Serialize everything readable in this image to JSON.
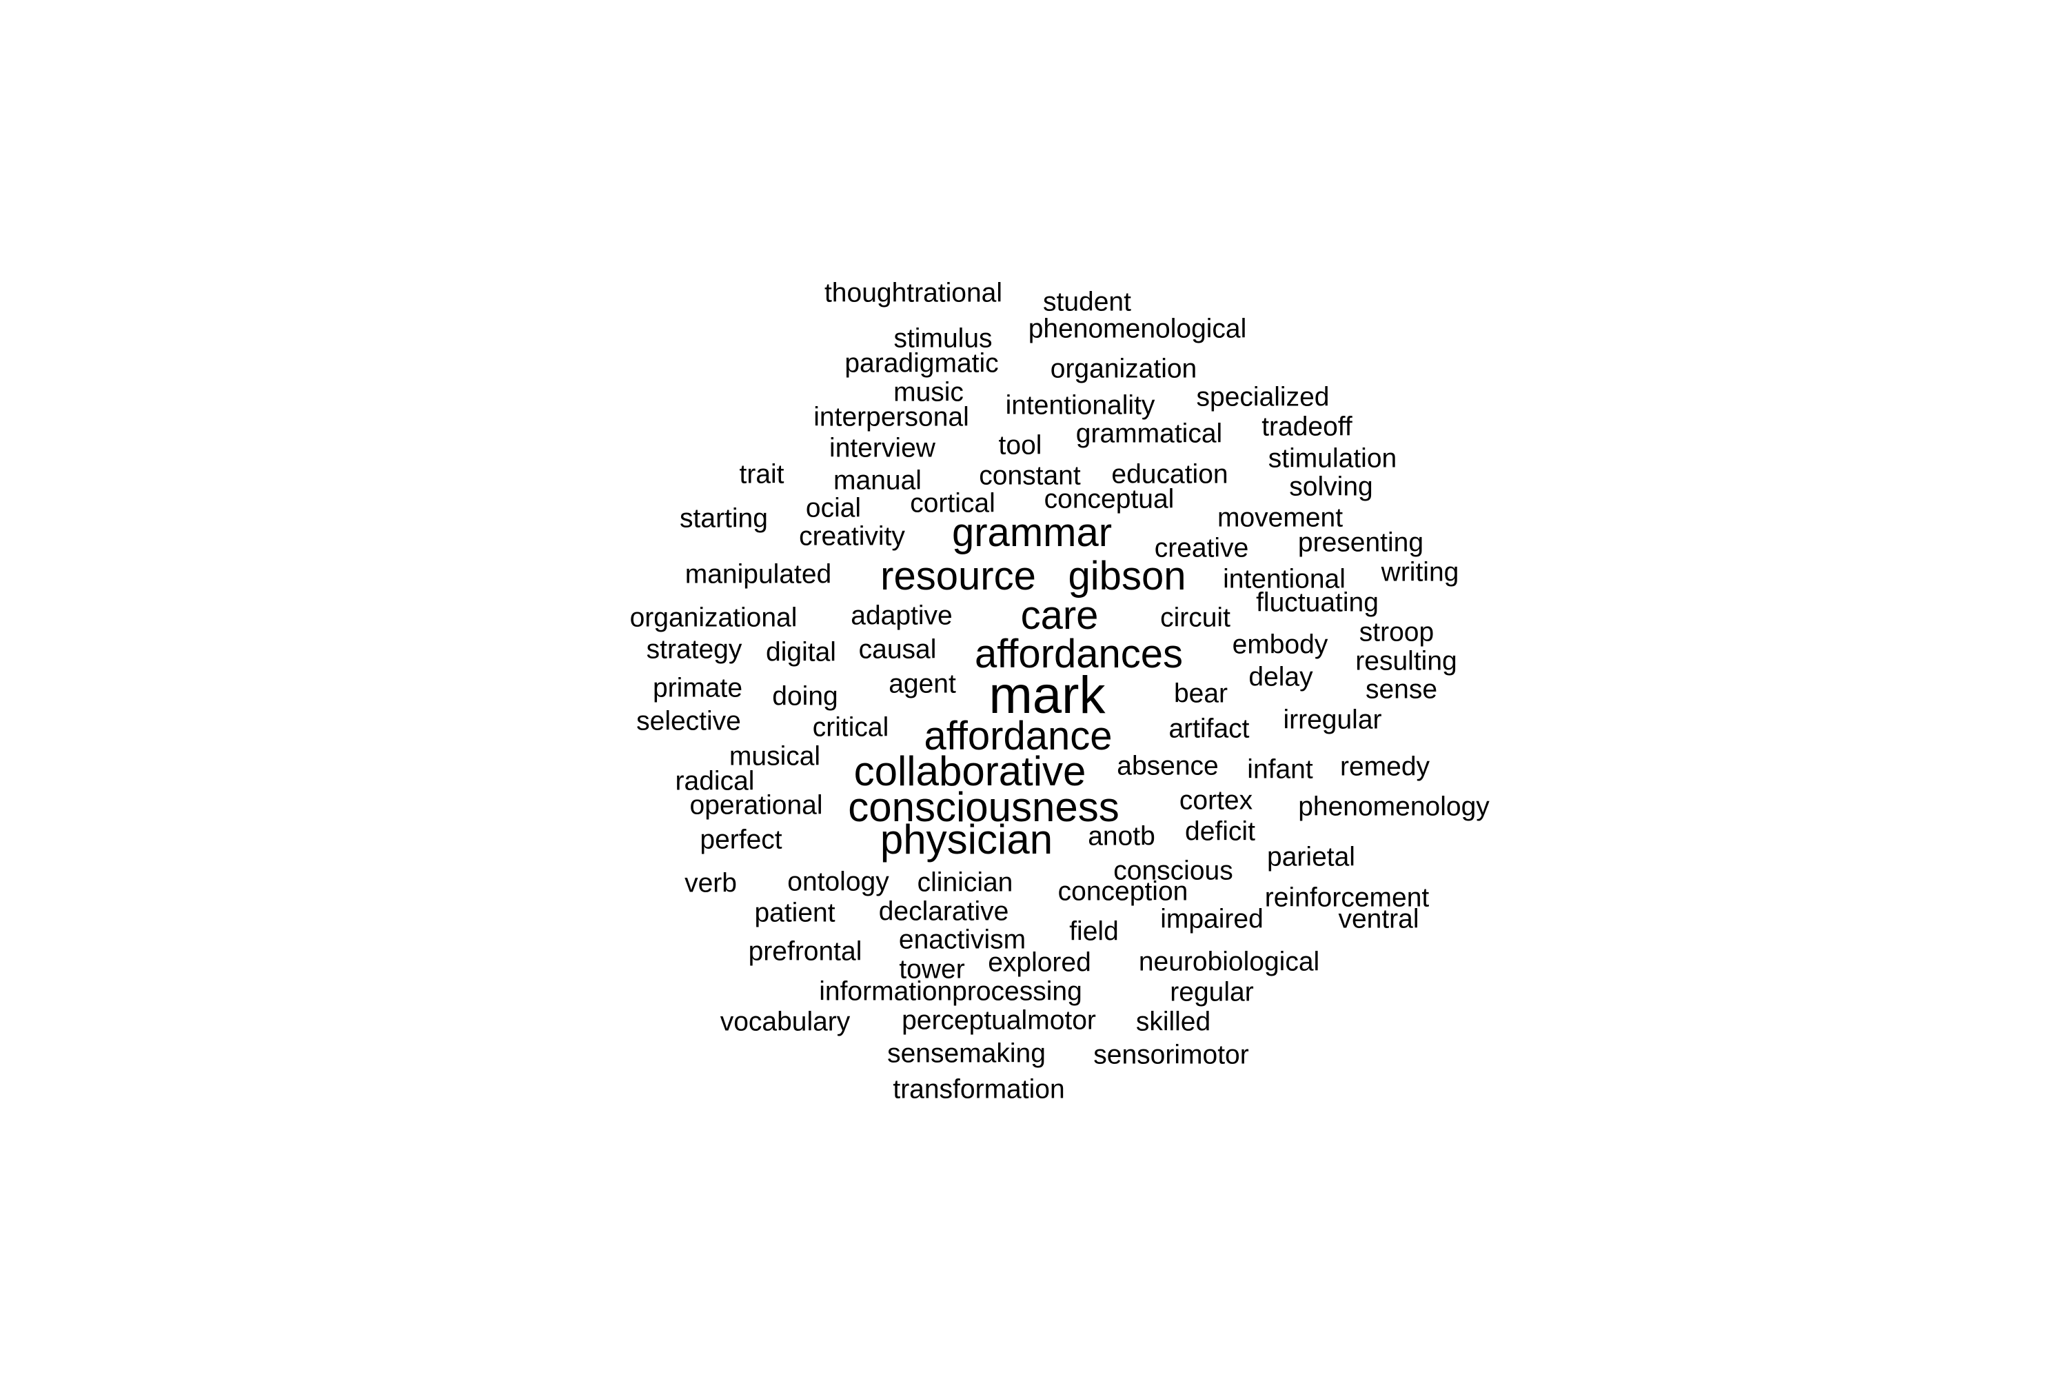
{
  "word_cloud": {
    "text_color": "#000000",
    "background": "#ffffff",
    "words": [
      {
        "text": "thoughtrational",
        "weight": 1
      },
      {
        "text": "student",
        "weight": 1
      },
      {
        "text": "stimulus",
        "weight": 1
      },
      {
        "text": "phenomenological",
        "weight": 1
      },
      {
        "text": "paradigmatic",
        "weight": 1
      },
      {
        "text": "organization",
        "weight": 1
      },
      {
        "text": "music",
        "weight": 1
      },
      {
        "text": "intentionality",
        "weight": 1
      },
      {
        "text": "specialized",
        "weight": 1
      },
      {
        "text": "interpersonal",
        "weight": 1
      },
      {
        "text": "tradeoff",
        "weight": 1
      },
      {
        "text": "grammatical",
        "weight": 1
      },
      {
        "text": "interview",
        "weight": 1
      },
      {
        "text": "tool",
        "weight": 1
      },
      {
        "text": "stimulation",
        "weight": 1
      },
      {
        "text": "trait",
        "weight": 1
      },
      {
        "text": "manual",
        "weight": 1
      },
      {
        "text": "constant",
        "weight": 1
      },
      {
        "text": "education",
        "weight": 1
      },
      {
        "text": "solving",
        "weight": 1
      },
      {
        "text": "ocial",
        "weight": 1
      },
      {
        "text": "cortical",
        "weight": 1
      },
      {
        "text": "conceptual",
        "weight": 1
      },
      {
        "text": "starting",
        "weight": 1
      },
      {
        "text": "movement",
        "weight": 1
      },
      {
        "text": "creativity",
        "weight": 1
      },
      {
        "text": "grammar",
        "weight": 3
      },
      {
        "text": "presenting",
        "weight": 1
      },
      {
        "text": "creative",
        "weight": 1
      },
      {
        "text": "manipulated",
        "weight": 1
      },
      {
        "text": "resource",
        "weight": 3
      },
      {
        "text": "gibson",
        "weight": 3
      },
      {
        "text": "intentional",
        "weight": 1
      },
      {
        "text": "writing",
        "weight": 1
      },
      {
        "text": "fluctuating",
        "weight": 1
      },
      {
        "text": "organizational",
        "weight": 1
      },
      {
        "text": "adaptive",
        "weight": 1
      },
      {
        "text": "care",
        "weight": 3
      },
      {
        "text": "circuit",
        "weight": 1
      },
      {
        "text": "stroop",
        "weight": 1
      },
      {
        "text": "strategy",
        "weight": 1
      },
      {
        "text": "digital",
        "weight": 1
      },
      {
        "text": "causal",
        "weight": 1
      },
      {
        "text": "affordances",
        "weight": 3
      },
      {
        "text": "embody",
        "weight": 1
      },
      {
        "text": "resulting",
        "weight": 1
      },
      {
        "text": "delay",
        "weight": 1
      },
      {
        "text": "primate",
        "weight": 1
      },
      {
        "text": "doing",
        "weight": 1
      },
      {
        "text": "agent",
        "weight": 1
      },
      {
        "text": "mark",
        "weight": 5
      },
      {
        "text": "bear",
        "weight": 1
      },
      {
        "text": "sense",
        "weight": 1
      },
      {
        "text": "selective",
        "weight": 1
      },
      {
        "text": "critical",
        "weight": 1
      },
      {
        "text": "affordance",
        "weight": 3
      },
      {
        "text": "artifact",
        "weight": 1
      },
      {
        "text": "irregular",
        "weight": 1
      },
      {
        "text": "musical",
        "weight": 1
      },
      {
        "text": "radical",
        "weight": 1
      },
      {
        "text": "collaborative",
        "weight": 4
      },
      {
        "text": "absence",
        "weight": 1
      },
      {
        "text": "infant",
        "weight": 1
      },
      {
        "text": "remedy",
        "weight": 1
      },
      {
        "text": "operational",
        "weight": 1
      },
      {
        "text": "consciousness",
        "weight": 4
      },
      {
        "text": "cortex",
        "weight": 1
      },
      {
        "text": "phenomenology",
        "weight": 1
      },
      {
        "text": "perfect",
        "weight": 1
      },
      {
        "text": "physician",
        "weight": 4
      },
      {
        "text": "anotb",
        "weight": 1
      },
      {
        "text": "deficit",
        "weight": 1
      },
      {
        "text": "parietal",
        "weight": 1
      },
      {
        "text": "conscious",
        "weight": 1
      },
      {
        "text": "verb",
        "weight": 1
      },
      {
        "text": "ontology",
        "weight": 1
      },
      {
        "text": "clinician",
        "weight": 1
      },
      {
        "text": "conception",
        "weight": 1
      },
      {
        "text": "reinforcement",
        "weight": 1
      },
      {
        "text": "patient",
        "weight": 1
      },
      {
        "text": "declarative",
        "weight": 1
      },
      {
        "text": "impaired",
        "weight": 1
      },
      {
        "text": "ventral",
        "weight": 1
      },
      {
        "text": "field",
        "weight": 1
      },
      {
        "text": "enactivism",
        "weight": 1
      },
      {
        "text": "prefrontal",
        "weight": 1
      },
      {
        "text": "tower",
        "weight": 1
      },
      {
        "text": "explored",
        "weight": 1
      },
      {
        "text": "neurobiological",
        "weight": 1
      },
      {
        "text": "informationprocessing",
        "weight": 1
      },
      {
        "text": "regular",
        "weight": 1
      },
      {
        "text": "vocabulary",
        "weight": 1
      },
      {
        "text": "perceptualmotor",
        "weight": 1
      },
      {
        "text": "skilled",
        "weight": 1
      },
      {
        "text": "sensemaking",
        "weight": 1
      },
      {
        "text": "sensorimotor",
        "weight": 1
      },
      {
        "text": "transformation",
        "weight": 1
      }
    ]
  }
}
